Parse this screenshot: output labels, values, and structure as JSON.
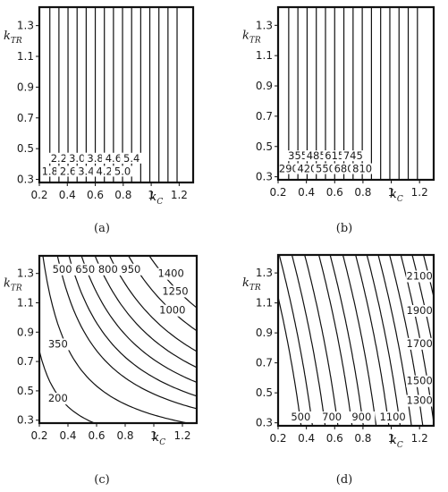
{
  "chart_data": [
    {
      "panel": "(a)",
      "type": "contour",
      "xlabel": "kC",
      "ylabel": "kTR",
      "xlim": [
        0.2,
        1.3
      ],
      "ylim": [
        0.28,
        1.42
      ],
      "xticks": [
        "0.2",
        "0.4",
        "0.6",
        "0.8",
        "1",
        "1.2"
      ],
      "yticks": [
        "0.3",
        "0.5",
        "0.7",
        "0.9",
        "1.1",
        "1.3"
      ],
      "contours": [
        {
          "level": "1.8",
          "x": 0.275
        },
        {
          "level": "2.2",
          "x": 0.34
        },
        {
          "level": "2.6",
          "x": 0.405
        },
        {
          "level": "3.0",
          "x": 0.47
        },
        {
          "level": "3.4",
          "x": 0.535
        },
        {
          "level": "3.8",
          "x": 0.6
        },
        {
          "level": "4.2",
          "x": 0.665
        },
        {
          "level": "4.6",
          "x": 0.73
        },
        {
          "level": "5.0",
          "x": 0.795
        },
        {
          "level": "5.4",
          "x": 0.86
        },
        {
          "level": "",
          "x": 0.925
        },
        {
          "level": "",
          "x": 0.99
        },
        {
          "level": "",
          "x": 1.055
        },
        {
          "level": "",
          "x": 1.12
        },
        {
          "level": "",
          "x": 1.185
        }
      ]
    },
    {
      "panel": "(b)",
      "type": "contour",
      "xlabel": "kC",
      "ylabel": "kTR",
      "xlim": [
        0.2,
        1.3
      ],
      "ylim": [
        0.28,
        1.42
      ],
      "xticks": [
        "0.2",
        "0.4",
        "0.6",
        "0.8",
        "1",
        "1.2"
      ],
      "yticks": [
        "0.3",
        "0.5",
        "0.7",
        "0.9",
        "1.1",
        "1.3"
      ],
      "contours": [
        {
          "level": "290",
          "x": 0.275
        },
        {
          "level": "355",
          "x": 0.34
        },
        {
          "level": "420",
          "x": 0.405
        },
        {
          "level": "485",
          "x": 0.47
        },
        {
          "level": "550",
          "x": 0.535
        },
        {
          "level": "615",
          "x": 0.6
        },
        {
          "level": "680",
          "x": 0.665
        },
        {
          "level": "745",
          "x": 0.73
        },
        {
          "level": "810",
          "x": 0.795
        },
        {
          "level": "",
          "x": 0.86
        },
        {
          "level": "",
          "x": 0.925
        },
        {
          "level": "",
          "x": 0.99
        },
        {
          "level": "",
          "x": 1.055
        },
        {
          "level": "",
          "x": 1.12
        },
        {
          "level": "",
          "x": 1.185
        }
      ]
    },
    {
      "panel": "(c)",
      "type": "contour",
      "xlabel": "kC",
      "ylabel": "kTR",
      "xlim": [
        0.2,
        1.3
      ],
      "ylim": [
        0.28,
        1.42
      ],
      "xticks": [
        "0.2",
        "0.4",
        "0.6",
        "0.8",
        "1",
        "1.2"
      ],
      "yticks": [
        "0.3",
        "0.5",
        "0.7",
        "0.9",
        "1.1",
        "1.3"
      ],
      "contours": [
        {
          "level": "200",
          "const": 0.13
        },
        {
          "level": "350",
          "const": 0.28
        },
        {
          "level": "500",
          "const": 0.42
        },
        {
          "level": "650",
          "const": 0.53
        },
        {
          "level": "800",
          "const": 0.65
        },
        {
          "level": "950",
          "const": 0.78
        },
        {
          "level": "1000",
          "const": 0.92
        },
        {
          "level": "1250",
          "const": 1.1
        },
        {
          "level": "1400",
          "const": 1.3
        }
      ]
    },
    {
      "panel": "(d)",
      "type": "contour",
      "xlabel": "kC",
      "ylabel": "kTR",
      "xlim": [
        0.2,
        1.3
      ],
      "ylim": [
        0.28,
        1.42
      ],
      "xticks": [
        "0.2",
        "0.4",
        "0.6",
        "0.8",
        "1",
        "1.2"
      ],
      "yticks": [
        "0.3",
        "0.5",
        "0.7",
        "0.9",
        "1.1",
        "1.3"
      ],
      "contours": [
        {
          "level": "",
          "b": 0.2
        },
        {
          "level": "500",
          "b": 0.36
        },
        {
          "level": "",
          "b": 0.44
        },
        {
          "level": "700",
          "b": 0.53
        },
        {
          "level": "",
          "b": 0.62
        },
        {
          "level": "900",
          "b": 0.72
        },
        {
          "level": "",
          "b": 0.8
        },
        {
          "level": "1100",
          "b": 0.89
        },
        {
          "level": "1300",
          "b": 0.98
        },
        {
          "level": "",
          "b": 1.06
        },
        {
          "level": "1500",
          "b": 1.14
        },
        {
          "level": "",
          "b": 1.22
        },
        {
          "level": "1700",
          "b": 1.3
        },
        {
          "level": "",
          "b": 1.38
        },
        {
          "level": "1900",
          "b": 1.46
        },
        {
          "level": "",
          "b": 1.54
        },
        {
          "level": "2100",
          "b": 1.64
        }
      ]
    }
  ],
  "captions": [
    "(a)",
    "(b)",
    "(c)",
    "(d)"
  ],
  "colors": {
    "line": "#111111",
    "background": "#ffffff"
  }
}
